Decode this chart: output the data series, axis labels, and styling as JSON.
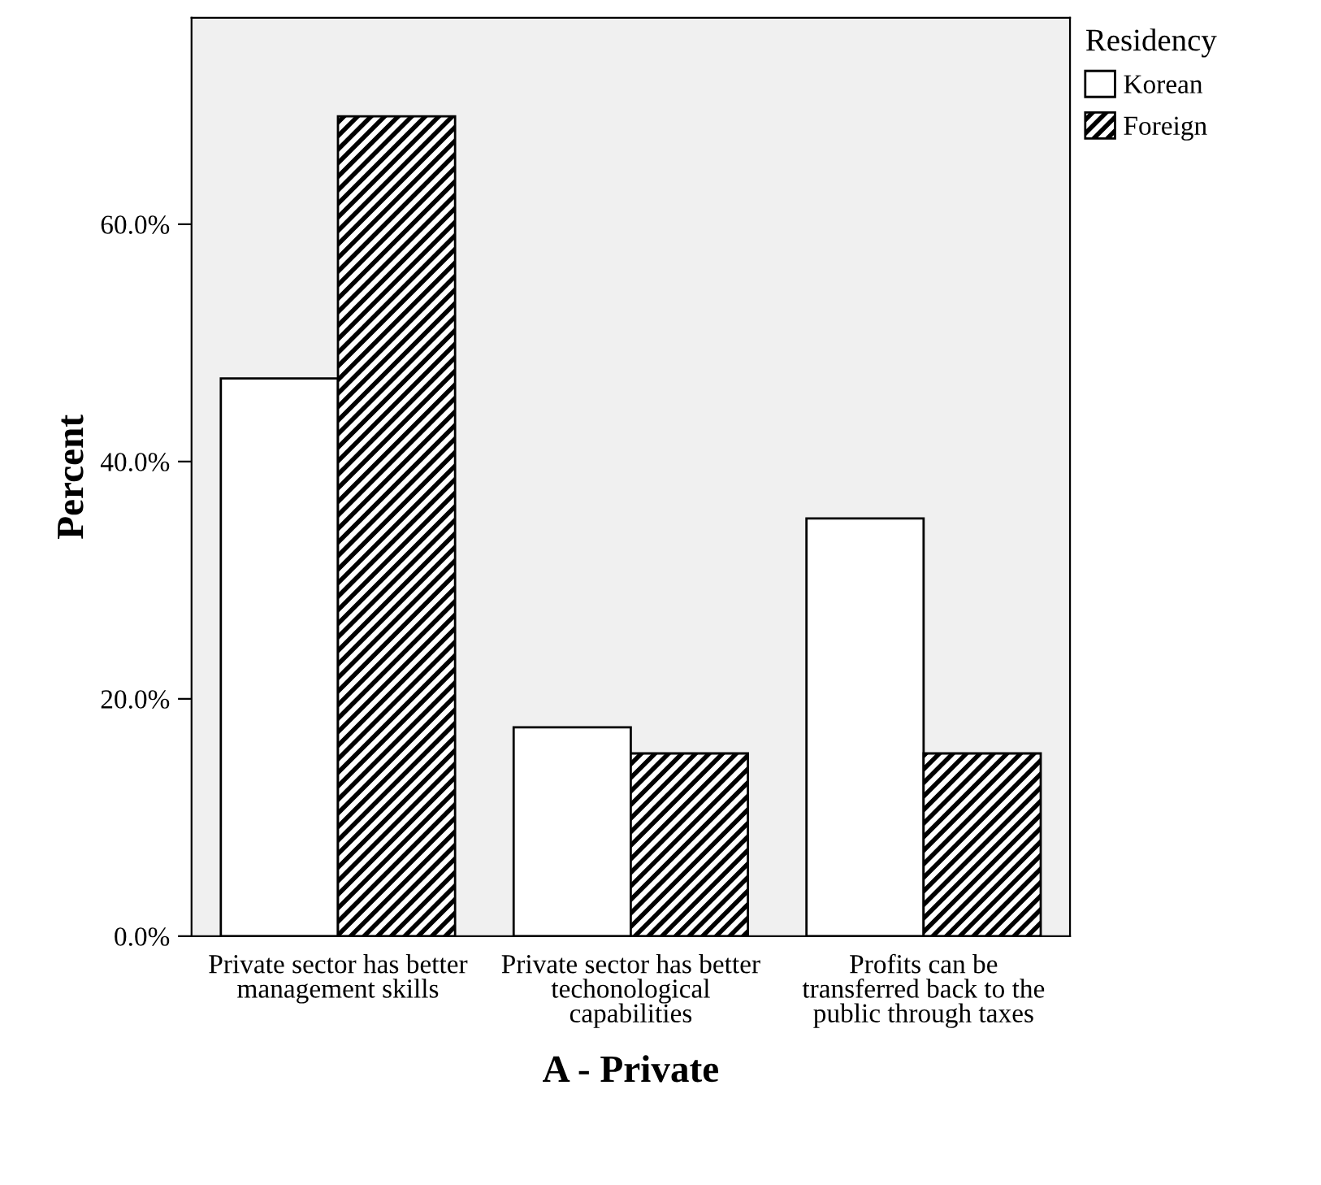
{
  "chart_data": {
    "type": "bar",
    "categories": [
      "Private sector has better management skills",
      "Private sector has better techonological capabilities",
      "Profits can be transferred back to the public through taxes"
    ],
    "series": [
      {
        "name": "Korean",
        "color": "#ffffff",
        "values": [
          47.0,
          17.6,
          35.2
        ]
      },
      {
        "name": "Foreign",
        "color": "#000000",
        "values": [
          69.1,
          15.4,
          15.4
        ]
      }
    ],
    "xlabel": "A - Private",
    "ylabel": "Percent",
    "legend_title": "Residency",
    "legend": "right",
    "ylim": [
      0,
      77.4
    ],
    "yticks": [
      {
        "value": 0,
        "label": "0.0%"
      },
      {
        "value": 20,
        "label": "20.0%"
      },
      {
        "value": 40,
        "label": "40.0%"
      },
      {
        "value": 60,
        "label": "60.0%"
      }
    ],
    "grid": false
  }
}
